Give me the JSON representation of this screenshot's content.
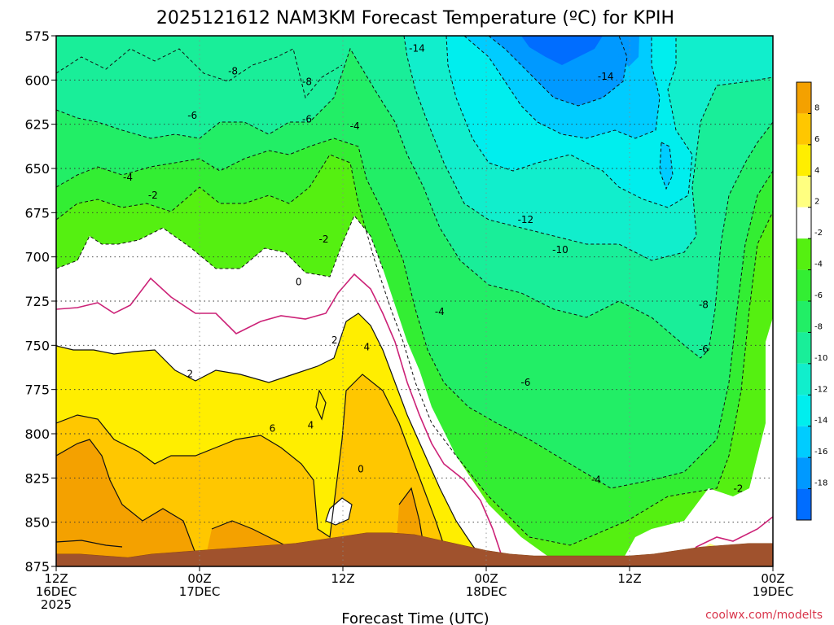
{
  "chart_data": {
    "type": "heatmap",
    "title": "2025121612 NAM3KM Forecast Temperature (ºC) for KPIH",
    "xlabel": "Forecast Time (UTC)",
    "ylabel": "",
    "credit": "coolwx.com/modelts",
    "y_ticks": [
      "575",
      "600",
      "625",
      "650",
      "675",
      "700",
      "725",
      "750",
      "775",
      "800",
      "825",
      "850",
      "875"
    ],
    "y_range_hPa": [
      575,
      875
    ],
    "x_range_hours": [
      0,
      60
    ],
    "x_ticks": [
      {
        "hour": 0,
        "line1": "12Z",
        "line2": "16DEC",
        "line3": "2025"
      },
      {
        "hour": 12,
        "line1": "00Z",
        "line2": "17DEC",
        "line3": ""
      },
      {
        "hour": 24,
        "line1": "12Z",
        "line2": "",
        "line3": ""
      },
      {
        "hour": 36,
        "line1": "00Z",
        "line2": "18DEC",
        "line3": ""
      },
      {
        "hour": 48,
        "line1": "12Z",
        "line2": "",
        "line3": ""
      },
      {
        "hour": 60,
        "line1": "00Z",
        "line2": "19DEC",
        "line3": ""
      }
    ],
    "colorbar_levels": [
      "8",
      "6",
      "4",
      "2",
      "-2",
      "-4",
      "-6",
      "-8",
      "-10",
      "-12",
      "-14",
      "-16",
      "-18"
    ],
    "colorbar_colors": [
      "#f4a100",
      "#ffc700",
      "#ffee00",
      "#ffff80",
      "#ffffff",
      "#55f011",
      "#33ee33",
      "#22ee66",
      "#19ee99",
      "#11eecc",
      "#00eeee",
      "#00ccff",
      "#0099ff",
      "#006dff"
    ],
    "contour_labels": [
      {
        "text": "-14",
        "hour": 30.2,
        "hPa": 583
      },
      {
        "text": "-14",
        "hour": 46.0,
        "hPa": 599
      },
      {
        "text": "-8",
        "hour": 14.8,
        "hPa": 596
      },
      {
        "text": "-8",
        "hour": 21.0,
        "hPa": 602
      },
      {
        "text": "-6",
        "hour": 11.4,
        "hPa": 621
      },
      {
        "text": "-6",
        "hour": 21.0,
        "hPa": 623
      },
      {
        "text": "-4",
        "hour": 25.0,
        "hPa": 627
      },
      {
        "text": "-4",
        "hour": 6.0,
        "hPa": 656
      },
      {
        "text": "-2",
        "hour": 8.1,
        "hPa": 666
      },
      {
        "text": "-2",
        "hour": 22.4,
        "hPa": 691
      },
      {
        "text": "-12",
        "hour": 39.3,
        "hPa": 680
      },
      {
        "text": "-10",
        "hour": 42.2,
        "hPa": 697
      },
      {
        "text": "-8",
        "hour": 54.2,
        "hPa": 728
      },
      {
        "text": "-6",
        "hour": 54.2,
        "hPa": 753
      },
      {
        "text": "-4",
        "hour": 32.1,
        "hPa": 732
      },
      {
        "text": "-6",
        "hour": 39.3,
        "hPa": 772
      },
      {
        "text": "-4",
        "hour": 45.2,
        "hPa": 827
      },
      {
        "text": "-2",
        "hour": 57.1,
        "hPa": 832
      },
      {
        "text": "0",
        "hour": 20.3,
        "hPa": 715
      },
      {
        "text": "2",
        "hour": 11.2,
        "hPa": 767
      },
      {
        "text": "2",
        "hour": 23.3,
        "hPa": 748
      },
      {
        "text": "4",
        "hour": 26.0,
        "hPa": 752
      },
      {
        "text": "4",
        "hour": 21.3,
        "hPa": 796
      },
      {
        "text": "6",
        "hour": 18.1,
        "hPa": 798
      },
      {
        "text": "0",
        "hour": 25.5,
        "hPa": 821
      }
    ],
    "terrain_surface_hPa": [
      [
        0,
        868
      ],
      [
        2,
        868
      ],
      [
        4,
        869
      ],
      [
        6,
        870
      ],
      [
        8,
        868
      ],
      [
        10,
        867
      ],
      [
        12,
        866
      ],
      [
        14,
        865
      ],
      [
        16,
        864
      ],
      [
        18,
        863
      ],
      [
        20,
        862
      ],
      [
        22,
        860
      ],
      [
        24,
        858
      ],
      [
        26,
        856
      ],
      [
        28,
        856
      ],
      [
        30,
        857
      ],
      [
        32,
        860
      ],
      [
        34,
        863
      ],
      [
        36,
        866
      ],
      [
        38,
        868
      ],
      [
        40,
        869
      ],
      [
        42,
        869
      ],
      [
        44,
        869
      ],
      [
        46,
        869
      ],
      [
        48,
        869
      ],
      [
        50,
        868
      ],
      [
        52,
        866
      ],
      [
        54,
        864
      ],
      [
        56,
        863
      ],
      [
        58,
        862
      ],
      [
        60,
        862
      ]
    ]
  }
}
